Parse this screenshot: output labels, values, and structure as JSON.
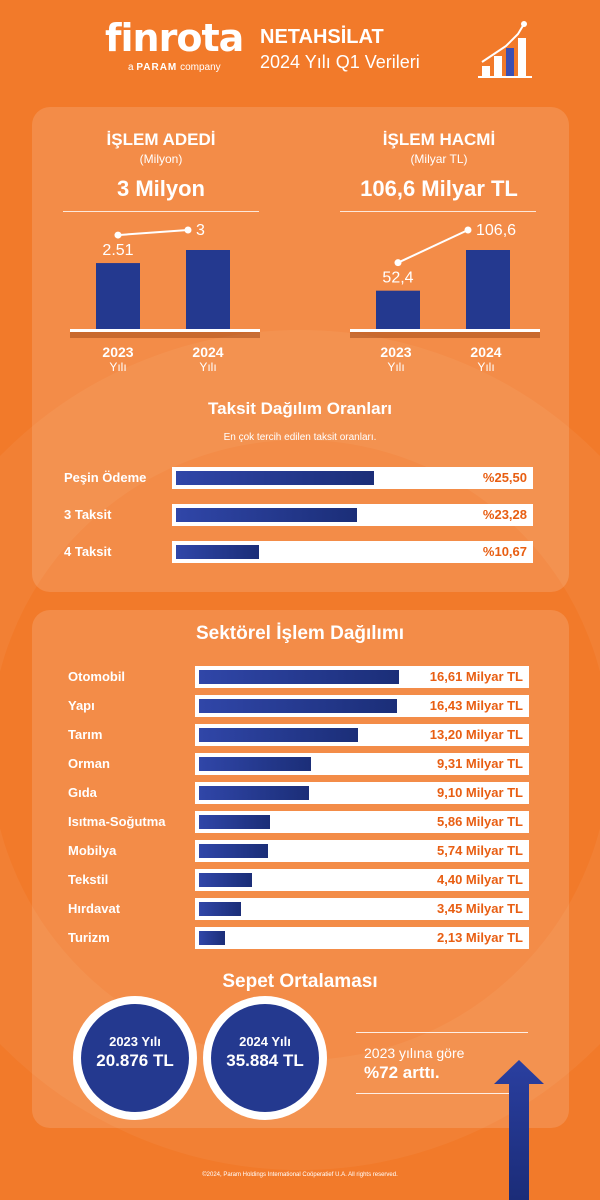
{
  "header": {
    "logo_text": "finrota",
    "logo_sub_prefix": "a",
    "logo_sub_brand": "PARAM",
    "logo_sub_suffix": "company",
    "title": "NETAHSİLAT",
    "subtitle": "2024 Yılı Q1 Verileri"
  },
  "kpis": [
    {
      "title": "İŞLEM ADEDİ",
      "unit": "(Milyon)",
      "value": "3 Milyon",
      "label_2023": "2.51",
      "label_2024": "3",
      "value_2023": 2.51,
      "value_2024": 3
    },
    {
      "title": "İŞLEM HACMİ",
      "unit": "(Milyar TL)",
      "value": "106,6 Milyar TL",
      "label_2023": "52,4",
      "label_2024": "106,6",
      "value_2023": 52.4,
      "value_2024": 106.6
    }
  ],
  "years": [
    {
      "year": "2023",
      "suffix": "Yılı"
    },
    {
      "year": "2024",
      "suffix": "Yılı"
    }
  ],
  "installments": {
    "title": "Taksit Dağılım Oranları",
    "subtitle": "En çok tercih edilen taksit oranları.",
    "items": [
      {
        "label": "Peşin Ödeme",
        "value_text": "%25,50",
        "value": 25.5
      },
      {
        "label": "3 Taksit",
        "value_text": "%23,28",
        "value": 23.28
      },
      {
        "label": "4 Taksit",
        "value_text": "%10,67",
        "value": 10.67
      }
    ]
  },
  "sectors": {
    "title": "Sektörel İşlem Dağılımı",
    "items": [
      {
        "label": "Otomobil",
        "value_text": "16,61 Milyar TL",
        "value": 16.61
      },
      {
        "label": "Yapı",
        "value_text": "16,43 Milyar TL",
        "value": 16.43
      },
      {
        "label": "Tarım",
        "value_text": "13,20 Milyar TL",
        "value": 13.2
      },
      {
        "label": "Orman",
        "value_text": "9,31 Milyar TL",
        "value": 9.31
      },
      {
        "label": "Gıda",
        "value_text": "9,10 Milyar TL",
        "value": 9.1
      },
      {
        "label": "Isıtma-Soğutma",
        "value_text": "5,86 Milyar TL",
        "value": 5.86
      },
      {
        "label": "Mobilya",
        "value_text": "5,74 Milyar TL",
        "value": 5.74
      },
      {
        "label": "Tekstil",
        "value_text": "4,40 Milyar TL",
        "value": 4.4
      },
      {
        "label": "Hırdavat",
        "value_text": "3,45 Milyar TL",
        "value": 3.45
      },
      {
        "label": "Turizm",
        "value_text": "2,13 Milyar TL",
        "value": 2.13
      }
    ]
  },
  "basket": {
    "title": "Sepet Ortalaması",
    "items": [
      {
        "year": "2023 Yılı",
        "value": "20.876 TL"
      },
      {
        "year": "2024 Yılı",
        "value": "35.884 TL"
      }
    ],
    "increase_line1": "2023 yılına göre",
    "increase_line2": "%72 arttı."
  },
  "footer": "©2024, Param Holdings International Coöperatief U.A. All rights reserved.",
  "colors": {
    "background": "#f27a2a",
    "bar_blue": "#24398f",
    "value_orange": "#e85e12"
  }
}
